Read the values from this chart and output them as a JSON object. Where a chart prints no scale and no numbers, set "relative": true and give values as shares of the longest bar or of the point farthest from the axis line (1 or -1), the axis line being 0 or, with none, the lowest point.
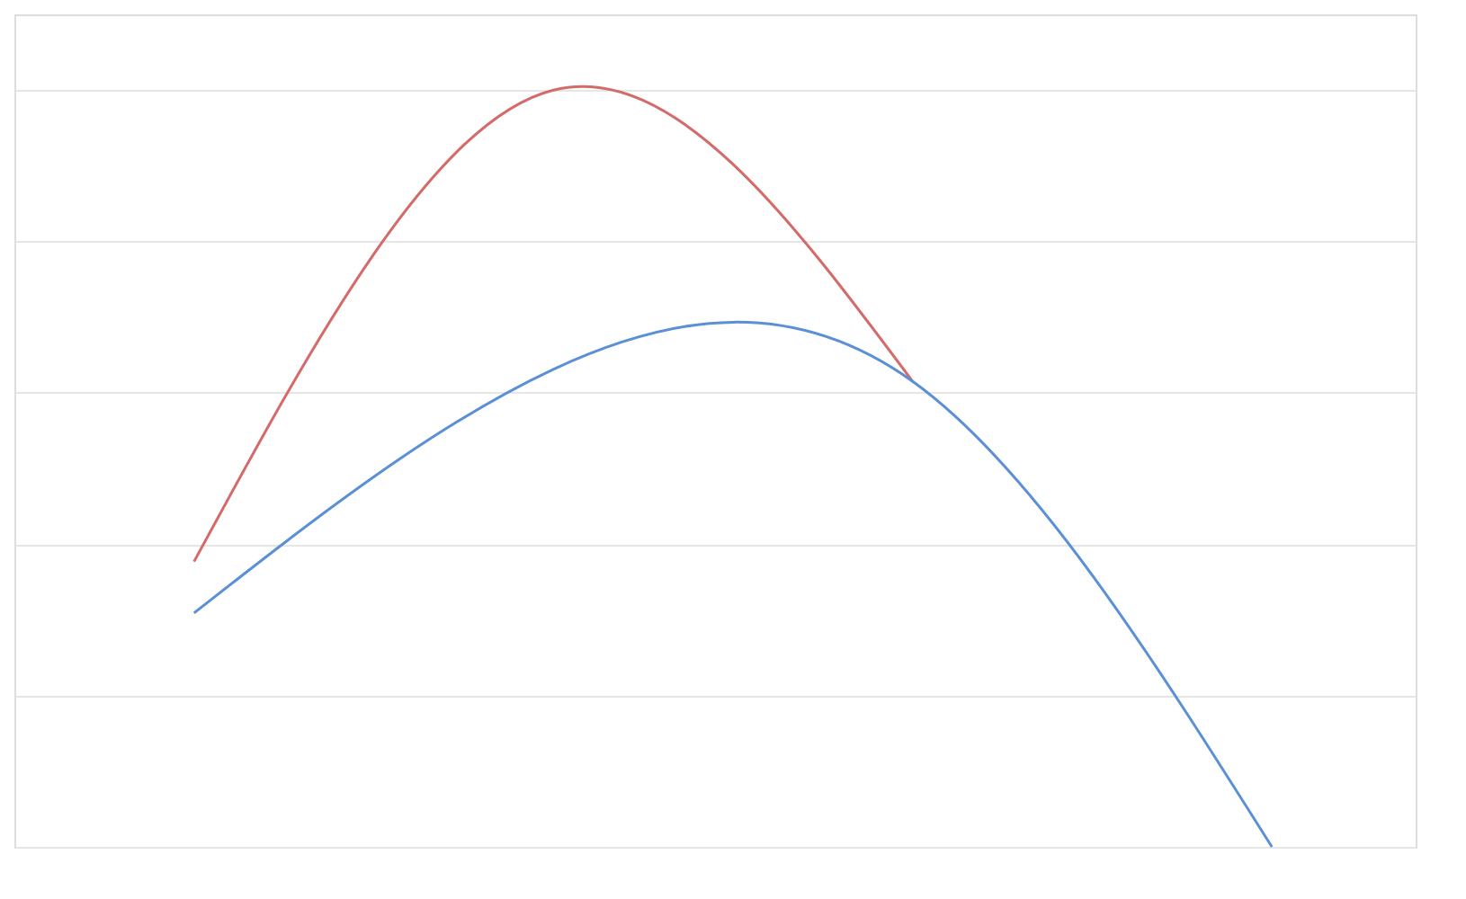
{
  "chart_data": {
    "type": "line",
    "relative": true,
    "categories": [
      null,
      null,
      null,
      null
    ],
    "series": [
      {
        "color": "#d46a6a",
        "values": [
          0.377,
          1,
          0.615,
          null
        ]
      },
      {
        "color": "#5b8fd6",
        "values": [
          0.309,
          0.631,
          0.615,
          0
        ]
      }
    ],
    "grid": "y",
    "marker": "none",
    "line_style": "solid"
  }
}
